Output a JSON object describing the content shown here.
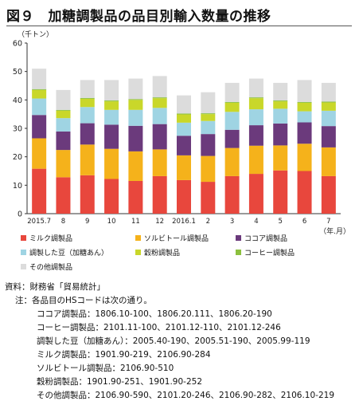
{
  "title": "図９　加糖調製品の品目別輸入数量の推移",
  "chart_data": {
    "type": "bar",
    "stacked": true,
    "unit_label": "（千トン）",
    "x_unit_label": "（年.月）",
    "categories": [
      "2015.7",
      "8",
      "9",
      "10",
      "11",
      "12",
      "2016.1",
      "2",
      "3",
      "4",
      "5",
      "6",
      "7"
    ],
    "ylim": [
      0,
      60
    ],
    "yticks": [
      0,
      10,
      20,
      30,
      40,
      50,
      60
    ],
    "grid": false,
    "legend_position": "bottom",
    "series": [
      {
        "name": "ミルク調製品",
        "color": "#e8473d",
        "values": [
          15.8,
          12.8,
          13.5,
          12.2,
          11.5,
          13.2,
          11.8,
          11.2,
          13.2,
          14.0,
          15.2,
          15.0,
          13.2
        ]
      },
      {
        "name": "ソルビトール調製品",
        "color": "#f5b21b",
        "values": [
          10.7,
          9.6,
          10.8,
          10.6,
          10.4,
          9.4,
          8.7,
          9.1,
          9.9,
          9.9,
          8.8,
          9.6,
          10.1
        ]
      },
      {
        "name": "ココア調製品",
        "color": "#6b3a7c",
        "values": [
          8.2,
          6.5,
          7.5,
          8.5,
          9.0,
          8.9,
          6.9,
          7.7,
          6.4,
          7.2,
          7.7,
          7.5,
          7.5
        ]
      },
      {
        "name": "調製した豆（加糖あん）",
        "color": "#9fd4e3",
        "values": [
          5.8,
          4.7,
          5.7,
          5.2,
          5.6,
          5.7,
          4.6,
          4.6,
          6.3,
          5.6,
          5.2,
          3.9,
          5.4
        ]
      },
      {
        "name": "穀粉調製品",
        "color": "#c9d72a",
        "values": [
          3.0,
          2.6,
          2.9,
          3.0,
          3.5,
          3.4,
          2.9,
          2.4,
          3.2,
          3.9,
          2.6,
          3.0,
          2.9
        ]
      },
      {
        "name": "コーヒー調製品",
        "color": "#8cc03f",
        "values": [
          0.3,
          0.3,
          0.3,
          0.3,
          0.3,
          0.3,
          0.3,
          0.3,
          0.3,
          0.3,
          0.3,
          0.3,
          0.3
        ]
      },
      {
        "name": "その他調製品",
        "color": "#dcdcdc",
        "values": [
          7.2,
          7.0,
          6.3,
          7.2,
          7.2,
          7.5,
          6.4,
          7.4,
          6.7,
          6.6,
          6.2,
          7.7,
          6.6
        ]
      }
    ]
  },
  "notes": {
    "source_label": "資料：",
    "source": "財務省「貿易統計」",
    "note_label": "注：",
    "note_intro": "各品目のHSコードは次の通り。",
    "hs_codes": [
      {
        "name": "ココア調製品",
        "codes": "：1806.10-100、1806.20.111、1806.20-190"
      },
      {
        "name": "コーヒー調製品",
        "codes": "：2101.11-100、2101.12-110、2101.12-246"
      },
      {
        "name": "調製した豆（加糖あん）",
        "codes": "：2005.40-190、2005.51-190、2005.99-119"
      },
      {
        "name": "ミルク調製品",
        "codes": "：1901.90-219、2106.90-284"
      },
      {
        "name": "ソルビトール調製品",
        "codes": "：2106.90-510"
      },
      {
        "name": "穀粉調製品",
        "codes": "：1901.90-251、1901.90-252"
      },
      {
        "name": "その他調製品",
        "codes": "：2106.90-590、2101.20-246、2106.90-282、2106.10-219"
      }
    ]
  }
}
